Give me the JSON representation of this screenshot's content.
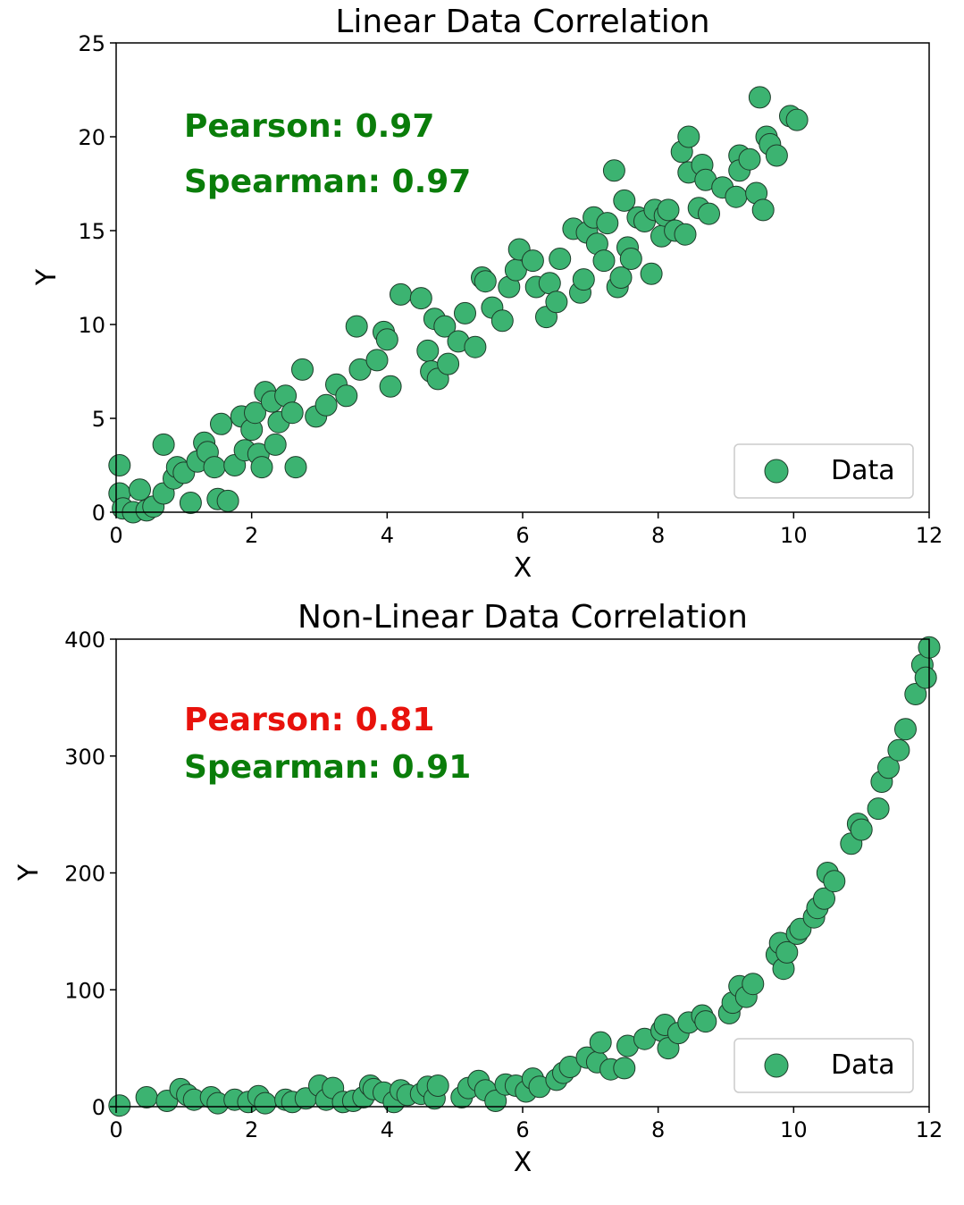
{
  "colors": {
    "point_fill": "#3cb371",
    "point_stroke": "#1e3d2a",
    "good": "#0a7d0a",
    "bad": "#e8120c"
  },
  "chart_data": [
    {
      "type": "scatter",
      "title": "Linear Data Correlation",
      "xlabel": "X",
      "ylabel": "Y",
      "xlim": [
        0,
        12
      ],
      "ylim": [
        0,
        25
      ],
      "xticks": [
        "0",
        "2",
        "4",
        "6",
        "8",
        "10",
        "12"
      ],
      "yticks": [
        "0",
        "5",
        "10",
        "15",
        "20",
        "25"
      ],
      "grid": false,
      "legend": {
        "label": "Data",
        "position": "lower-right"
      },
      "stats": [
        {
          "text": "Pearson: 0.97",
          "color": "#0a7d0a"
        },
        {
          "text": "Spearman: 0.97",
          "color": "#0a7d0a"
        }
      ],
      "series": [
        {
          "name": "Data",
          "points": [
            [
              0.05,
              2.5
            ],
            [
              0.05,
              1.0
            ],
            [
              0.1,
              0.2
            ],
            [
              0.25,
              0.0
            ],
            [
              0.35,
              1.2
            ],
            [
              0.45,
              0.1
            ],
            [
              0.55,
              0.3
            ],
            [
              0.7,
              3.6
            ],
            [
              0.7,
              1.0
            ],
            [
              0.85,
              1.8
            ],
            [
              0.9,
              2.4
            ],
            [
              1.0,
              2.1
            ],
            [
              1.1,
              0.5
            ],
            [
              1.2,
              2.7
            ],
            [
              1.3,
              3.7
            ],
            [
              1.35,
              3.2
            ],
            [
              1.45,
              2.4
            ],
            [
              1.5,
              0.7
            ],
            [
              1.55,
              4.7
            ],
            [
              1.65,
              0.6
            ],
            [
              1.75,
              2.5
            ],
            [
              1.85,
              5.1
            ],
            [
              1.9,
              3.3
            ],
            [
              2.0,
              4.4
            ],
            [
              2.05,
              5.3
            ],
            [
              2.1,
              3.1
            ],
            [
              2.15,
              2.4
            ],
            [
              2.2,
              6.4
            ],
            [
              2.3,
              5.9
            ],
            [
              2.35,
              3.6
            ],
            [
              2.4,
              4.8
            ],
            [
              2.5,
              6.2
            ],
            [
              2.6,
              5.3
            ],
            [
              2.65,
              2.4
            ],
            [
              2.75,
              7.6
            ],
            [
              2.95,
              5.1
            ],
            [
              3.1,
              5.7
            ],
            [
              3.25,
              6.8
            ],
            [
              3.4,
              6.2
            ],
            [
              3.55,
              9.9
            ],
            [
              3.6,
              7.6
            ],
            [
              3.85,
              8.1
            ],
            [
              3.95,
              9.6
            ],
            [
              4.0,
              9.2
            ],
            [
              4.05,
              6.7
            ],
            [
              4.2,
              11.6
            ],
            [
              4.5,
              11.4
            ],
            [
              4.6,
              8.6
            ],
            [
              4.65,
              7.5
            ],
            [
              4.7,
              10.3
            ],
            [
              4.75,
              7.1
            ],
            [
              4.85,
              9.9
            ],
            [
              4.9,
              7.9
            ],
            [
              5.05,
              9.1
            ],
            [
              5.15,
              10.6
            ],
            [
              5.3,
              8.8
            ],
            [
              5.4,
              12.5
            ],
            [
              5.45,
              12.3
            ],
            [
              5.55,
              10.9
            ],
            [
              5.7,
              10.2
            ],
            [
              5.8,
              12.0
            ],
            [
              5.9,
              12.9
            ],
            [
              5.95,
              14.0
            ],
            [
              6.15,
              13.4
            ],
            [
              6.2,
              12.0
            ],
            [
              6.35,
              10.4
            ],
            [
              6.4,
              12.2
            ],
            [
              6.5,
              11.2
            ],
            [
              6.55,
              13.5
            ],
            [
              6.75,
              15.1
            ],
            [
              6.85,
              11.7
            ],
            [
              6.9,
              12.4
            ],
            [
              6.95,
              14.9
            ],
            [
              7.05,
              15.7
            ],
            [
              7.1,
              14.3
            ],
            [
              7.2,
              13.4
            ],
            [
              7.25,
              15.4
            ],
            [
              7.35,
              18.2
            ],
            [
              7.4,
              12.0
            ],
            [
              7.45,
              12.5
            ],
            [
              7.5,
              16.6
            ],
            [
              7.55,
              14.1
            ],
            [
              7.6,
              13.5
            ],
            [
              7.7,
              15.7
            ],
            [
              7.8,
              15.5
            ],
            [
              7.9,
              12.7
            ],
            [
              7.95,
              16.1
            ],
            [
              8.05,
              14.7
            ],
            [
              8.1,
              15.8
            ],
            [
              8.15,
              16.1
            ],
            [
              8.25,
              15.0
            ],
            [
              8.35,
              19.2
            ],
            [
              8.4,
              14.8
            ],
            [
              8.45,
              18.1
            ],
            [
              8.45,
              20.0
            ],
            [
              8.6,
              16.2
            ],
            [
              8.65,
              18.5
            ],
            [
              8.7,
              17.7
            ],
            [
              8.75,
              15.9
            ],
            [
              8.95,
              17.3
            ],
            [
              9.15,
              16.8
            ],
            [
              9.2,
              19.0
            ],
            [
              9.2,
              18.2
            ],
            [
              9.35,
              18.8
            ],
            [
              9.45,
              17.0
            ],
            [
              9.5,
              22.1
            ],
            [
              9.55,
              16.1
            ],
            [
              9.6,
              20.0
            ],
            [
              9.65,
              19.6
            ],
            [
              9.75,
              19.0
            ],
            [
              9.95,
              21.1
            ],
            [
              10.05,
              20.9
            ]
          ]
        }
      ]
    },
    {
      "type": "scatter",
      "title": "Non-Linear Data Correlation",
      "xlabel": "X",
      "ylabel": "Y",
      "xlim": [
        0,
        12
      ],
      "ylim": [
        0,
        400
      ],
      "xticks": [
        "0",
        "2",
        "4",
        "6",
        "8",
        "10",
        "12"
      ],
      "yticks": [
        "0",
        "100",
        "200",
        "300",
        "400"
      ],
      "grid": false,
      "legend": {
        "label": "Data",
        "position": "lower-right"
      },
      "stats": [
        {
          "text": "Pearson: 0.81",
          "color": "#e8120c"
        },
        {
          "text": "Spearman: 0.91",
          "color": "#0a7d0a"
        }
      ],
      "series": [
        {
          "name": "Data",
          "points": [
            [
              0.05,
              1
            ],
            [
              0.45,
              8
            ],
            [
              0.75,
              5
            ],
            [
              0.95,
              15
            ],
            [
              1.05,
              10
            ],
            [
              1.15,
              6
            ],
            [
              1.4,
              8
            ],
            [
              1.5,
              3
            ],
            [
              1.75,
              6
            ],
            [
              1.95,
              4
            ],
            [
              2.1,
              9
            ],
            [
              2.2,
              3
            ],
            [
              2.5,
              6
            ],
            [
              2.6,
              4
            ],
            [
              2.8,
              7
            ],
            [
              3.0,
              18
            ],
            [
              3.1,
              6
            ],
            [
              3.2,
              16
            ],
            [
              3.35,
              4
            ],
            [
              3.5,
              5
            ],
            [
              3.65,
              8
            ],
            [
              3.75,
              18
            ],
            [
              3.8,
              15
            ],
            [
              3.95,
              12
            ],
            [
              4.1,
              4
            ],
            [
              4.2,
              14
            ],
            [
              4.3,
              10
            ],
            [
              4.5,
              11
            ],
            [
              4.6,
              17
            ],
            [
              4.7,
              7
            ],
            [
              4.75,
              18
            ],
            [
              5.1,
              8
            ],
            [
              5.2,
              16
            ],
            [
              5.35,
              22
            ],
            [
              5.45,
              14
            ],
            [
              5.6,
              5
            ],
            [
              5.75,
              19
            ],
            [
              5.9,
              18
            ],
            [
              6.05,
              13
            ],
            [
              6.15,
              24
            ],
            [
              6.25,
              17
            ],
            [
              6.5,
              23
            ],
            [
              6.6,
              29
            ],
            [
              6.7,
              34
            ],
            [
              6.95,
              42
            ],
            [
              7.1,
              38
            ],
            [
              7.15,
              55
            ],
            [
              7.3,
              32
            ],
            [
              7.5,
              33
            ],
            [
              7.55,
              52
            ],
            [
              7.8,
              58
            ],
            [
              8.05,
              65
            ],
            [
              8.1,
              70
            ],
            [
              8.15,
              50
            ],
            [
              8.3,
              63
            ],
            [
              8.45,
              72
            ],
            [
              8.65,
              78
            ],
            [
              8.7,
              73
            ],
            [
              9.05,
              80
            ],
            [
              9.1,
              89
            ],
            [
              9.2,
              103
            ],
            [
              9.3,
              94
            ],
            [
              9.4,
              105
            ],
            [
              9.75,
              130
            ],
            [
              9.8,
              140
            ],
            [
              9.85,
              118
            ],
            [
              9.9,
              132
            ],
            [
              10.05,
              148
            ],
            [
              10.1,
              152
            ],
            [
              10.3,
              162
            ],
            [
              10.35,
              170
            ],
            [
              10.45,
              178
            ],
            [
              10.5,
              200
            ],
            [
              10.6,
              193
            ],
            [
              10.85,
              225
            ],
            [
              10.95,
              242
            ],
            [
              11.0,
              237
            ],
            [
              11.25,
              255
            ],
            [
              11.3,
              278
            ],
            [
              11.4,
              290
            ],
            [
              11.55,
              305
            ],
            [
              11.65,
              323
            ],
            [
              11.8,
              353
            ],
            [
              11.9,
              378
            ],
            [
              11.95,
              367
            ],
            [
              12.0,
              393
            ]
          ]
        }
      ]
    }
  ]
}
